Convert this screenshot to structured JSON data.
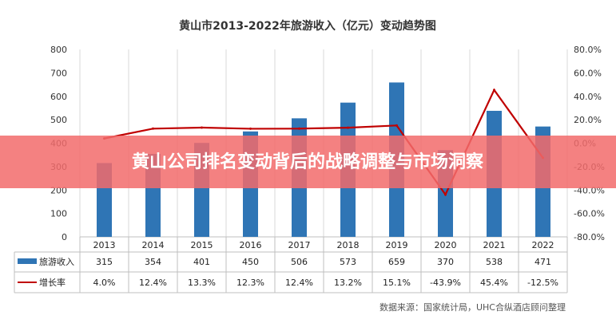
{
  "chart_data": {
    "type": "bar",
    "title": "黄山市2013-2022年旅游收入（亿元）变动趋势图",
    "categories": [
      "2013",
      "2014",
      "2015",
      "2016",
      "2017",
      "2018",
      "2019",
      "2020",
      "2021",
      "2022"
    ],
    "series": [
      {
        "name": "旅游收入",
        "type": "bar",
        "axis": "left",
        "color": "#2f75b5",
        "values": [
          315,
          354,
          401,
          450,
          506,
          573,
          659,
          370,
          538,
          471
        ],
        "labels": [
          "315",
          "354",
          "401",
          "450",
          "506",
          "573",
          "659",
          "370",
          "538",
          "471"
        ]
      },
      {
        "name": "增长率",
        "type": "line",
        "axis": "right",
        "color": "#c00000",
        "values": [
          4.0,
          12.4,
          13.3,
          12.3,
          12.4,
          13.2,
          15.1,
          -43.9,
          45.4,
          -12.5
        ],
        "labels": [
          "4.0%",
          "12.4%",
          "13.3%",
          "12.3%",
          "12.4%",
          "13.2%",
          "15.1%",
          "-43.9%",
          "45.4%",
          "-12.5%"
        ]
      }
    ],
    "ylim_left": [
      0,
      800
    ],
    "yticks_left": [
      "0",
      "100",
      "200",
      "300",
      "400",
      "500",
      "600",
      "700",
      "800"
    ],
    "ylim_right": [
      -80,
      80
    ],
    "yticks_right": [
      "-80.0%",
      "-60.0%",
      "-40.0%",
      "-20.0%",
      "0.0%",
      "20.0%",
      "40.0%",
      "60.0%",
      "80.0%"
    ],
    "grid": "vertical",
    "legend": "data-table"
  },
  "source": "数据来源：国家统计局，UHC合纵酒店顾问整理",
  "banner": {
    "text": "黄山公司排名变动背后的战略调整与市场洞察",
    "color": "#f26b6b"
  }
}
